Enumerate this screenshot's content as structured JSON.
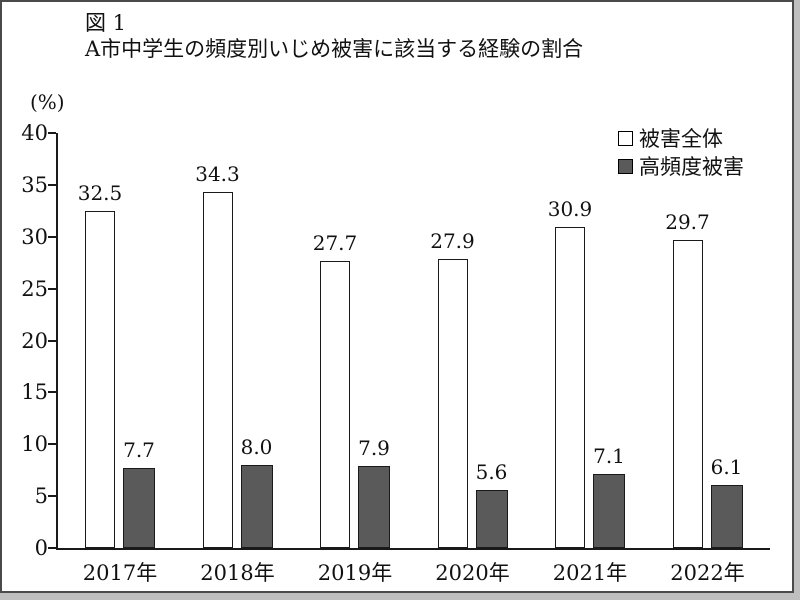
{
  "figure_label": "図 1",
  "title": "A市中学生の頻度別いじめ被害に該当する経験の割合",
  "unit_label": "(%)",
  "legend": [
    {
      "label": "被害全体",
      "swatch": "total"
    },
    {
      "label": "高頻度被害",
      "swatch": "high"
    }
  ],
  "colors": {
    "bar_total_fill": "#ffffff",
    "bar_high_fill": "#5a5a5a",
    "bar_border": "#1a1a1a",
    "axis": "#1a1a1a",
    "frame": "#4a4a4a"
  },
  "chart_data": {
    "type": "bar",
    "categories": [
      "2017年",
      "2018年",
      "2019年",
      "2020年",
      "2021年",
      "2022年"
    ],
    "series": [
      {
        "name": "被害全体",
        "values": [
          32.5,
          34.3,
          27.7,
          27.9,
          30.9,
          29.7
        ]
      },
      {
        "name": "高頻度被害",
        "values": [
          7.7,
          8.0,
          7.9,
          5.6,
          7.1,
          6.1
        ]
      }
    ],
    "title": "A市中学生の頻度別いじめ被害に該当する経験の割合",
    "xlabel": "",
    "ylabel": "(%)",
    "ylim": [
      0,
      40
    ],
    "yticks": [
      0,
      5,
      10,
      15,
      20,
      25,
      30,
      35,
      40
    ],
    "grid": false,
    "legend_position": "top-right",
    "value_labels": true
  }
}
